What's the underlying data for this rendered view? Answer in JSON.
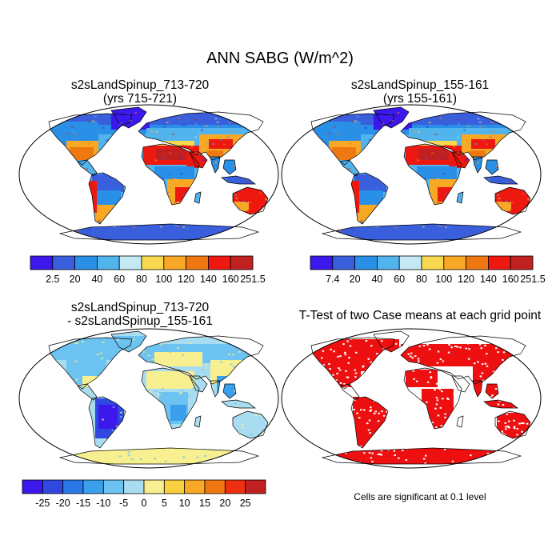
{
  "page_title": "ANN SABG (W/m^2)",
  "panels": [
    {
      "id": "case1",
      "title_line1": "s2sLandSpinup_713-720",
      "title_line2": "(yrs 715-721)",
      "colorbar": {
        "labels": [
          "2.5",
          "20",
          "40",
          "60",
          "80",
          "100",
          "120",
          "140",
          "160",
          "251.5"
        ],
        "colors": [
          "#3c18ec",
          "#3a5fdc",
          "#2a8fe6",
          "#52b4ec",
          "#c4e8f4",
          "#f8d84e",
          "#f8a824",
          "#f07810",
          "#ee1810",
          "#c02020"
        ]
      }
    },
    {
      "id": "case2",
      "title_line1": "s2sLandSpinup_155-161",
      "title_line2": "(yrs 155-161)",
      "colorbar": {
        "labels": [
          "7.4",
          "20",
          "40",
          "60",
          "80",
          "100",
          "120",
          "140",
          "160",
          "251.5"
        ],
        "colors": [
          "#3c18ec",
          "#3a5fdc",
          "#2a8fe6",
          "#52b4ec",
          "#c4e8f4",
          "#f8d84e",
          "#f8a824",
          "#f07810",
          "#ee1810",
          "#c02020"
        ]
      }
    },
    {
      "id": "diff",
      "title_line1": "s2sLandSpinup_713-720",
      "title_line2": "- s2sLandSpinup_155-161",
      "colorbar": {
        "labels": [
          "-25",
          "-20",
          "-15",
          "-10",
          "-5",
          "0",
          "5",
          "10",
          "15",
          "20",
          "25"
        ],
        "colors": [
          "#3c18ec",
          "#3048e0",
          "#2a78e8",
          "#3aa0ec",
          "#6cc2f0",
          "#a8dcf0",
          "#f8f090",
          "#f8d040",
          "#f8a824",
          "#f07810",
          "#ee3010",
          "#c02020"
        ]
      }
    },
    {
      "id": "ttest",
      "title_line1": "T-Test of two Case means at each grid point",
      "note": "Cells are significant at 0.1 level",
      "significant_color": "#ee1010"
    }
  ]
}
